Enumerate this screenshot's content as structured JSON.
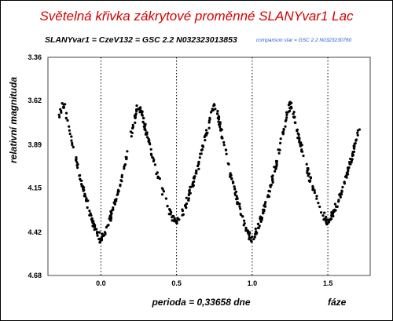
{
  "chart_data": {
    "type": "scatter",
    "title": "Světelná křivka zákrytové proměnné SLANYvar1 Lac",
    "subtitle": "SLANYvar1 = CzeV132 = GSC 2.2 N032323013853",
    "note": "comparison star = GSC 2.2 N0323230760",
    "xlabel": "fáze",
    "ylabel": "relativní magnituda",
    "period_label": "perioda = 0,33658 dne",
    "xlim": [
      -0.35,
      1.78
    ],
    "ylim": [
      4.68,
      3.36
    ],
    "y_inverted": true,
    "x_ticks": [
      "0.0",
      "0.5",
      "1.0",
      "1.5"
    ],
    "x_tick_values": [
      0.0,
      0.5,
      1.0,
      1.5
    ],
    "y_ticks": [
      "3.36",
      "3.62",
      "3.89",
      "4.15",
      "4.42",
      "4.68"
    ],
    "y_tick_values": [
      3.36,
      3.62,
      3.89,
      4.15,
      4.42,
      4.68
    ],
    "vertical_dotted_lines_at": [
      0.0,
      0.5,
      1.0,
      1.5
    ],
    "grid": false,
    "legend": false,
    "period_days": 0.33658,
    "light_curve_model": {
      "max_mag": 3.66,
      "primary_min_mag": 4.46,
      "secondary_min_mag": 4.36,
      "phases_of_primary_min": [
        0.0,
        1.0
      ],
      "phases_of_secondary_min": [
        0.5,
        1.5
      ]
    },
    "series": [
      {
        "x_range": [
          -0.28,
          1.72
        ],
        "color": "#000000"
      }
    ]
  }
}
